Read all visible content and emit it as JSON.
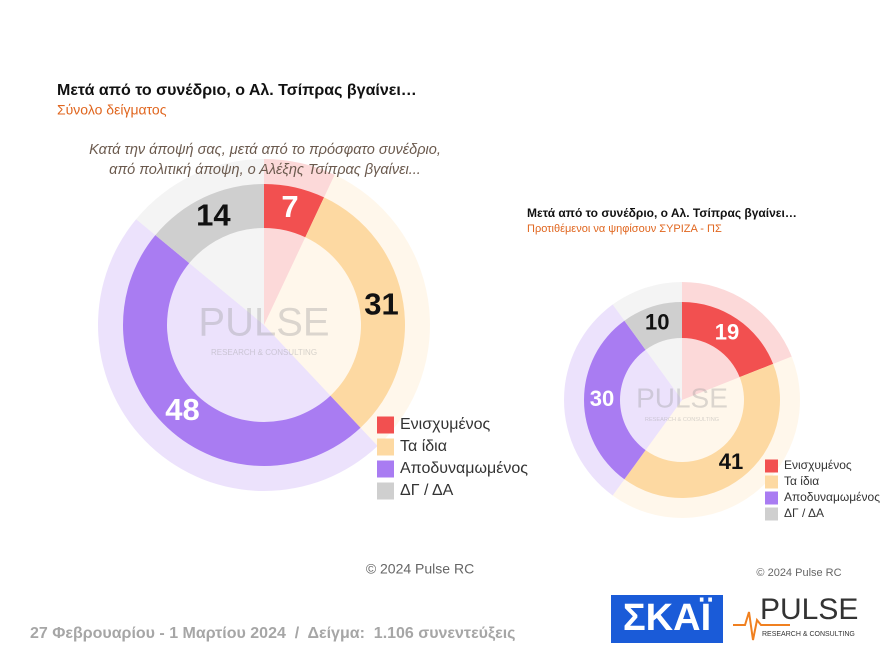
{
  "chart_data": [
    {
      "type": "donut",
      "title": "Μετά από το συνέδριο, ο Αλ. Τσίπρας βγαίνει…",
      "subtitle": "Σύνολο δείγματος",
      "question": [
        "Κατά την άποψή σας, μετά από το πρόσφατο συνέδριο,",
        "από πολιτική άποψη, ο Αλέξης Τσίπρας βγαίνει..."
      ],
      "categories": [
        "Ενισχυμένος",
        "Τα ίδια",
        "Αποδυναμωμένος",
        "ΔΓ / ΔΑ"
      ],
      "values": [
        7,
        31,
        48,
        14
      ],
      "colors": [
        "#f25050",
        "#fdd9a2",
        "#a97cf2",
        "#cfcfcf"
      ],
      "legend": "lower right",
      "note": "© 2024 Pulse RC"
    },
    {
      "type": "donut",
      "title": "Μετά από το συνέδριο, ο Αλ. Τσίπρας βγαίνει…",
      "subtitle": "Προτιθέμενοι να ψηφίσουν ΣΥΡΙΖΑ - ΠΣ",
      "categories": [
        "Ενισχυμένος",
        "Τα ίδια",
        "Αποδυναμωμένος",
        "ΔΓ / ΔΑ"
      ],
      "values": [
        19,
        41,
        30,
        10
      ],
      "colors": [
        "#f25050",
        "#fdd9a2",
        "#a97cf2",
        "#cfcfcf"
      ],
      "legend": "lower right",
      "note": "© 2024 Pulse RC"
    }
  ],
  "watermark": {
    "name": "PULSE",
    "tagline": "RESEARCH & CONSULTING"
  },
  "footer": {
    "text": "27 Φεβρουαρίου - 1 Μαρτίου 2024  /  Δείγμα:  1.106 συνεντεύξεις",
    "logo_skai": "ΣΚΑΪ",
    "logo_pulse": "PULSE",
    "logo_tagline": "RESEARCH & CONSULTING"
  }
}
